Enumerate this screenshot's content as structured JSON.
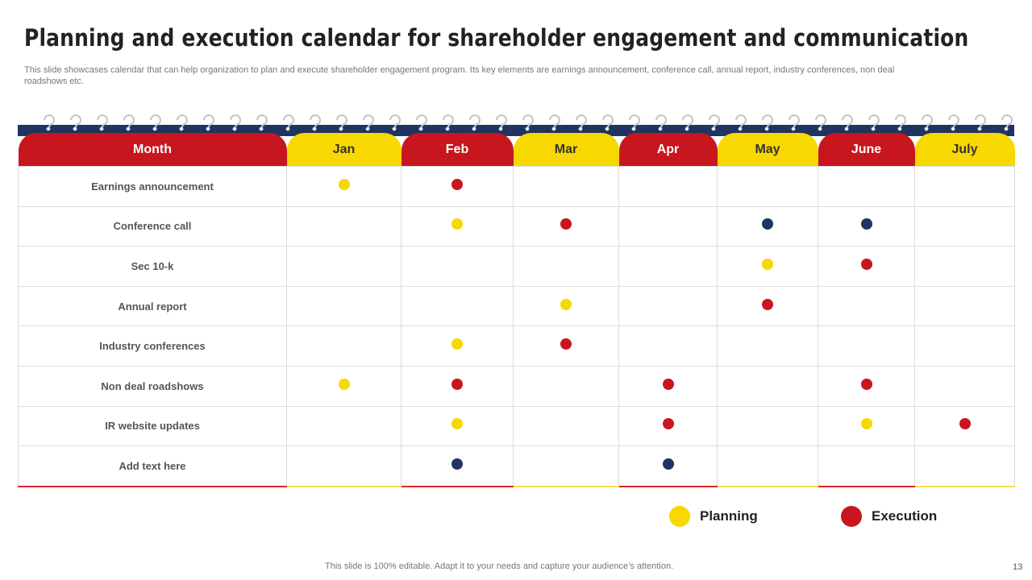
{
  "title": "Planning and execution calendar for shareholder engagement and communication",
  "subtitle": "This slide showcases calendar that can help organization to plan and execute  shareholder engagement program. Its key elements are earnings announcement, conference call, annual report, industry conferences, non deal roadshows etc.",
  "colors": {
    "red": "#c8161e",
    "yellow": "#f7d800",
    "navy": "#1f3460"
  },
  "table": {
    "header_label": "Month",
    "months": [
      "Jan",
      "Feb",
      "Mar",
      "Apr",
      "May",
      "June",
      "July"
    ],
    "rows": [
      {
        "label": "Earnings announcement",
        "cells": [
          "planning",
          "execution",
          "",
          "",
          "",
          "",
          ""
        ]
      },
      {
        "label": "Conference call",
        "cells": [
          "",
          "planning",
          "execution",
          "",
          "other",
          "other",
          ""
        ]
      },
      {
        "label": "Sec 10-k",
        "cells": [
          "",
          "",
          "",
          "",
          "planning",
          "execution",
          ""
        ]
      },
      {
        "label": "Annual report",
        "cells": [
          "",
          "",
          "planning",
          "",
          "execution",
          "",
          ""
        ]
      },
      {
        "label": "Industry  conferences",
        "cells": [
          "",
          "planning",
          "execution",
          "",
          "",
          "",
          ""
        ]
      },
      {
        "label": "Non deal roadshows",
        "cells": [
          "planning",
          "execution",
          "",
          "execution",
          "",
          "execution",
          ""
        ]
      },
      {
        "label": "IR website updates",
        "cells": [
          "",
          "planning",
          "",
          "execution",
          "",
          "planning",
          "execution"
        ]
      },
      {
        "label": "Add text here",
        "cells": [
          "",
          "other",
          "",
          "other",
          "",
          "",
          ""
        ]
      }
    ]
  },
  "legend": {
    "planning": "Planning",
    "execution": "Execution"
  },
  "footer": "This slide is 100% editable. Adapt it to your needs and capture your audience’s attention.",
  "page_number": "13"
}
